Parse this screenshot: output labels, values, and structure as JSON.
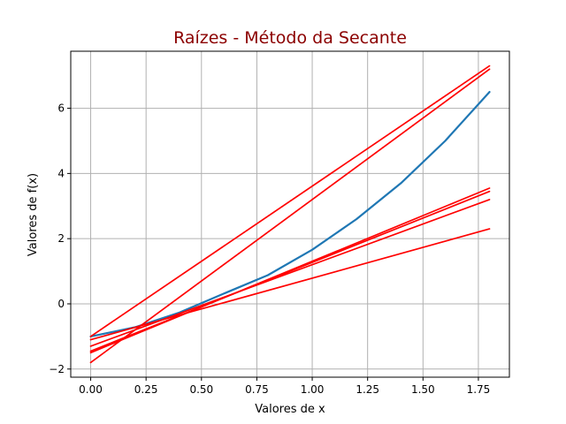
{
  "chart_data": {
    "type": "line",
    "title": "Raízes - Método da Secante",
    "xlabel": "Valores de x",
    "ylabel": "Valores de f(x)",
    "xlim": [
      -0.09,
      1.89
    ],
    "ylim": [
      -2.25,
      7.75
    ],
    "xticks": [
      0.0,
      0.25,
      0.5,
      0.75,
      1.0,
      1.25,
      1.5,
      1.75
    ],
    "xtick_labels": [
      "0.00",
      "0.25",
      "0.50",
      "0.75",
      "1.00",
      "1.25",
      "1.50",
      "1.75"
    ],
    "yticks": [
      -2,
      0,
      2,
      4,
      6
    ],
    "ytick_labels": [
      "−2",
      "0",
      "2",
      "4",
      "6"
    ],
    "grid": true,
    "colors": {
      "title": "#8b0000",
      "function": "#1f77b4",
      "secant": "#ff0000",
      "grid": "#b0b0b0"
    },
    "series": [
      {
        "kind": "function",
        "x": [
          0.0,
          0.2,
          0.4,
          0.6,
          0.8,
          1.0,
          1.2,
          1.4,
          1.6,
          1.8
        ],
        "y": [
          -1.0,
          -0.72,
          -0.27,
          0.31,
          0.88,
          1.66,
          2.6,
          3.7,
          5.0,
          6.5
        ]
      },
      {
        "kind": "secant",
        "x": [
          0.0,
          1.8
        ],
        "y": [
          -1.0,
          7.3
        ]
      },
      {
        "kind": "secant",
        "x": [
          0.0,
          1.8
        ],
        "y": [
          -1.8,
          7.2
        ]
      },
      {
        "kind": "secant",
        "x": [
          0.0,
          1.8
        ],
        "y": [
          -1.1,
          2.3
        ]
      },
      {
        "kind": "secant",
        "x": [
          0.0,
          1.8
        ],
        "y": [
          -1.3,
          3.2
        ]
      },
      {
        "kind": "secant",
        "x": [
          0.0,
          1.8
        ],
        "y": [
          -1.45,
          3.45
        ]
      },
      {
        "kind": "secant",
        "x": [
          0.0,
          1.8
        ],
        "y": [
          -1.5,
          3.55
        ]
      }
    ]
  }
}
